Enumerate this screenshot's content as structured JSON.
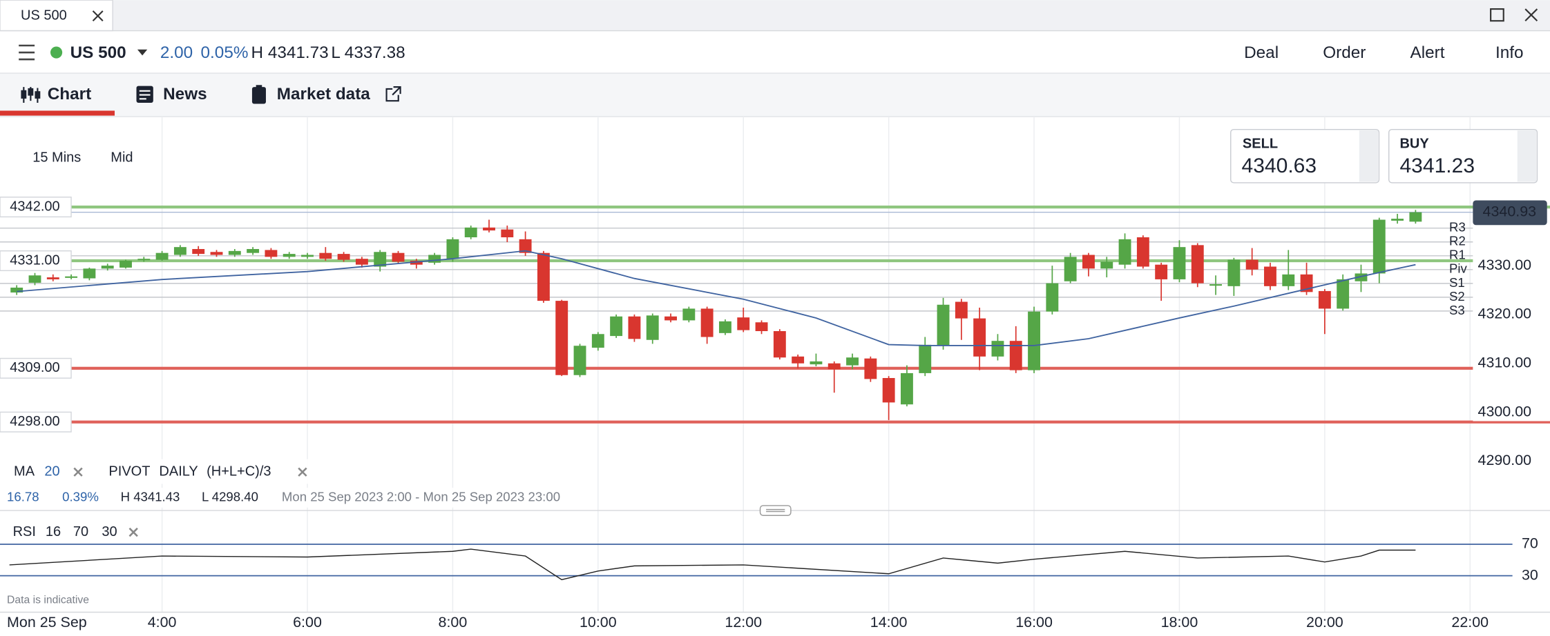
{
  "tab": {
    "title": "US 500"
  },
  "header": {
    "instrument": "US 500",
    "change": "2.00",
    "change_pct": "0.05%",
    "high": "H 4341.73",
    "low": "L 4337.38",
    "actions": [
      "Deal",
      "Order",
      "Alert",
      "Info"
    ]
  },
  "nav": [
    "Chart",
    "News",
    "Market data"
  ],
  "toolbar": {
    "interval": "15 Mins",
    "price_type": "Mid"
  },
  "quote": {
    "sell_label": "SELL",
    "sell": "4340.63",
    "buy_label": "BUY",
    "buy": "4341.23"
  },
  "indicators": {
    "ma_label": "MA",
    "ma_period": "20",
    "pivot_label": "PIVOT",
    "pivot_period": "DAILY",
    "pivot_formula": "(H+L+C)/3"
  },
  "stats": {
    "change": "16.78",
    "change_pct": "0.39%",
    "high": "H 4341.43",
    "low": "L 4298.40",
    "range": "Mon 25 Sep 2023 2:00 - Mon 25 Sep 2023 23:00"
  },
  "rsi_settings": {
    "label": "RSI",
    "period": "16",
    "upper": "70",
    "lower": "30"
  },
  "footer": {
    "note": "Data is indicative",
    "date": "Mon 25 Sep"
  },
  "chart_data": [
    {
      "type": "candlestick",
      "x": [
        2,
        2.25,
        2.5,
        2.75,
        3,
        3.25,
        3.5,
        3.75,
        4,
        4.25,
        4.5,
        4.75,
        5,
        5.25,
        5.5,
        5.75,
        6,
        6.25,
        6.5,
        6.75,
        7,
        7.25,
        7.5,
        7.75,
        8,
        8.25,
        8.5,
        8.75,
        9,
        9.25,
        9.5,
        9.75,
        10,
        10.25,
        10.5,
        10.75,
        11,
        11.25,
        11.5,
        11.75,
        12,
        12.25,
        12.5,
        12.75,
        13,
        13.25,
        13.5,
        13.75,
        14,
        14.25,
        14.5,
        14.75,
        15,
        15.25,
        15.5,
        15.75,
        16,
        16.25,
        16.5,
        16.75,
        17,
        17.25,
        17.5,
        17.75,
        18,
        18.25,
        18.5,
        18.75,
        19,
        19.25,
        19.5,
        19.75,
        20,
        20.25,
        20.5,
        20.75,
        21,
        21.25
      ],
      "open": [
        4324.5,
        4326.5,
        4327.6,
        4327.6,
        4327.4,
        4329.4,
        4329.6,
        4331.2,
        4331.2,
        4332.2,
        4333.4,
        4332.8,
        4332.2,
        4332.6,
        4333.2,
        4331.8,
        4331.8,
        4332.6,
        4332.4,
        4331.4,
        4329.8,
        4332.6,
        4331,
        4330.6,
        4331.4,
        4335.8,
        4337.8,
        4337.4,
        4335.4,
        4332.6,
        4322.8,
        4307.6,
        4313.2,
        4315.6,
        4319.6,
        4314.8,
        4319.6,
        4318.8,
        4321.2,
        4316.2,
        4319.4,
        4318.4,
        4316.6,
        4311.4,
        4309.8,
        4310,
        4309.6,
        4311,
        4307,
        4301.6,
        4308,
        4313.6,
        4322.6,
        4319.2,
        4311.4,
        4314.6,
        4308.6,
        4320.6,
        4326.8,
        4332.2,
        4329.4,
        4330.2,
        4335.8,
        4330.2,
        4327.2,
        4334.2,
        4326,
        4325.8,
        4331.2,
        4329.8,
        4325.8,
        4328.2,
        4324.8,
        4321.2,
        4326.8,
        4328.4,
        4339.2,
        4339
      ],
      "high": [
        4326,
        4328.5,
        4328.2,
        4328.2,
        4329.6,
        4330.4,
        4331.2,
        4331.8,
        4333,
        4334.2,
        4334,
        4333.2,
        4333.4,
        4333.8,
        4333.6,
        4332.8,
        4332.6,
        4333.8,
        4332.8,
        4331.8,
        4333.2,
        4333,
        4331.4,
        4332.6,
        4335.8,
        4338.2,
        4339.4,
        4338.2,
        4337,
        4333,
        4323,
        4314,
        4316.4,
        4320,
        4320,
        4320.2,
        4320.2,
        4321.6,
        4321.6,
        4319,
        4321.4,
        4318.8,
        4317,
        4311.8,
        4312,
        4310.4,
        4312,
        4311.4,
        4307.4,
        4309.6,
        4315.4,
        4323.4,
        4323.2,
        4321.4,
        4316,
        4317.6,
        4321.6,
        4330,
        4332.6,
        4332.6,
        4331.8,
        4336.6,
        4336.2,
        4330.6,
        4335.2,
        4334.6,
        4328,
        4331.6,
        4333.6,
        4330.6,
        4333.2,
        4330.6,
        4325.2,
        4328.2,
        4330.2,
        4339.8,
        4340.6,
        4341.4
      ],
      "low": [
        4324,
        4326,
        4326.8,
        4327.2,
        4327,
        4329,
        4329.4,
        4330.8,
        4331,
        4331.8,
        4332,
        4331.8,
        4331.8,
        4332.2,
        4331.4,
        4331.4,
        4331.4,
        4331,
        4330.8,
        4329.6,
        4328.8,
        4330.4,
        4329.4,
        4330.2,
        4330.8,
        4335.4,
        4336.8,
        4334.8,
        4332,
        4322.4,
        4307.4,
        4307.2,
        4312.6,
        4315.2,
        4314.4,
        4314,
        4318.4,
        4318.4,
        4314,
        4315.8,
        4316.4,
        4316,
        4310.8,
        4309,
        4309.4,
        4304,
        4308.8,
        4306.2,
        4298.4,
        4301.2,
        4307.4,
        4312.8,
        4314.8,
        4308.6,
        4310.6,
        4308,
        4308,
        4320,
        4326.4,
        4327.8,
        4327.6,
        4329.4,
        4329.4,
        4322.8,
        4326.6,
        4325.6,
        4324,
        4323.8,
        4328,
        4325,
        4325,
        4324,
        4316,
        4320.8,
        4324.6,
        4326.4,
        4338.6,
        4338.6
      ],
      "close": [
        4325.5,
        4328,
        4327.2,
        4327.8,
        4329.4,
        4330,
        4331,
        4331.4,
        4332.6,
        4333.8,
        4332.4,
        4332.2,
        4333,
        4333.4,
        4331.8,
        4332.4,
        4332.2,
        4331.4,
        4331.2,
        4330.2,
        4332.8,
        4330.8,
        4330.2,
        4332.2,
        4335.4,
        4337.8,
        4337.2,
        4335.8,
        4332.6,
        4322.8,
        4307.6,
        4313.6,
        4316,
        4319.6,
        4315,
        4319.8,
        4318.8,
        4321.2,
        4315.4,
        4318.6,
        4316.8,
        4316.6,
        4311.2,
        4310,
        4310.4,
        4308.8,
        4311.2,
        4306.8,
        4302,
        4308,
        4313.8,
        4322,
        4319.2,
        4311.4,
        4314.6,
        4308.6,
        4320.6,
        4326.4,
        4331.8,
        4329.4,
        4330.8,
        4335.4,
        4329.8,
        4327.2,
        4333.8,
        4326.4,
        4326.2,
        4331.2,
        4329.2,
        4325.8,
        4328.2,
        4324.6,
        4321.2,
        4327.2,
        4328.4,
        4339.4,
        4339.6,
        4340.93
      ],
      "up_color": "#55a647",
      "down_color": "#d9362f",
      "xlim": [
        1.77,
        23.1
      ],
      "ylim": [
        4281.3,
        4360.5
      ],
      "yticks": [
        {
          "value": 4290,
          "label": "4290.00"
        },
        {
          "value": 4300,
          "label": "4300.00"
        },
        {
          "value": 4310,
          "label": "4310.00"
        },
        {
          "value": 4320,
          "label": "4320.00"
        },
        {
          "value": 4330,
          "label": "4330.00"
        }
      ],
      "current_price": 4340.93,
      "levels": [
        {
          "value": 4342,
          "label": "4342.00",
          "color": "#8fc67f"
        },
        {
          "value": 4331,
          "label": "4331.00",
          "color": "#8fc67f"
        },
        {
          "value": 4309,
          "label": "4309.00",
          "color": "#e0625b"
        },
        {
          "value": 4298,
          "label": "4298.00",
          "color": "#e0625b"
        }
      ],
      "pivots": {
        "names": [
          "R3",
          "R2",
          "R1",
          "Piv",
          "S1",
          "S2",
          "S3"
        ],
        "values": [
          4337.68,
          4334.85,
          4332.02,
          4329.19,
          4326.36,
          4323.54,
          4320.71
        ]
      },
      "ma": {
        "color": "#3f63a0",
        "x": [
          2,
          4,
          6,
          8,
          9,
          9.5,
          10.5,
          12,
          13,
          14,
          14.5,
          15.5,
          16,
          16.75,
          18,
          18.75,
          19.5,
          20.5,
          21.25
        ],
        "values": [
          4324.7,
          4327.17,
          4328.79,
          4331.41,
          4333.03,
          4331.41,
          4327.37,
          4323.13,
          4319.29,
          4313.84,
          4313.64,
          4313.64,
          4313.64,
          4315.05,
          4319.29,
          4321.72,
          4324.34,
          4327.78,
          4330.2
        ]
      }
    },
    {
      "type": "line",
      "x": [
        1.9,
        4,
        6,
        8,
        8.25,
        9,
        9.5,
        10,
        10.5,
        12,
        14,
        14.75,
        15.5,
        16,
        17.25,
        18.25,
        19.5,
        20,
        20.5,
        20.75,
        21.25
      ],
      "values": [
        43.75,
        55,
        53.75,
        61,
        63.75,
        55,
        25,
        36,
        42.5,
        43.75,
        32.5,
        52.5,
        46,
        51,
        61,
        52.5,
        55,
        47.5,
        55,
        62.5,
        62.5
      ],
      "color": "#222222",
      "xlim": [
        1.77,
        23.1
      ],
      "ylim": [
        0,
        84
      ],
      "yticks": [
        30,
        70
      ],
      "band_color": "#3f63a0",
      "xticks": [
        {
          "value": 4,
          "label": "4:00"
        },
        {
          "value": 6,
          "label": "6:00"
        },
        {
          "value": 8,
          "label": "8:00"
        },
        {
          "value": 10,
          "label": "10:00"
        },
        {
          "value": 12,
          "label": "12:00"
        },
        {
          "value": 14,
          "label": "14:00"
        },
        {
          "value": 16,
          "label": "16:00"
        },
        {
          "value": 18,
          "label": "18:00"
        },
        {
          "value": 20,
          "label": "20:00"
        },
        {
          "value": 22,
          "label": "22:00"
        }
      ]
    }
  ]
}
